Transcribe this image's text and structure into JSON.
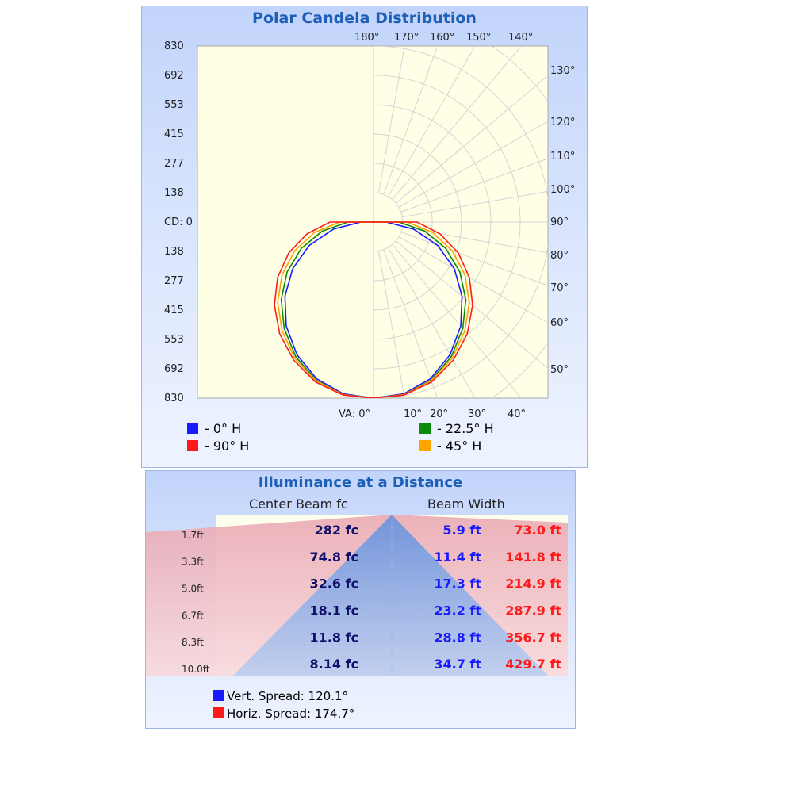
{
  "polar": {
    "title": "Polar Candela Distribution",
    "legend": [
      {
        "label": "- 0° H",
        "color": "#1a1aff"
      },
      {
        "label": "- 22.5° H",
        "color": "#0b8a0b"
      },
      {
        "label": "- 90° H",
        "color": "#ff1a1a"
      },
      {
        "label": "- 45° H",
        "color": "#ffa500"
      }
    ]
  },
  "chart_data": [
    {
      "type": "polar",
      "title": "Polar Candela Distribution",
      "radial_axis_label": "CD: 0",
      "radial_ticks": [
        "830",
        "692",
        "553",
        "415",
        "277",
        "138",
        "CD: 0",
        "138",
        "277",
        "415",
        "553",
        "692",
        "830"
      ],
      "radial_max": 830,
      "bottom_angle_label": "VA: 0°",
      "bottom_angle_ticks": [
        "10°",
        "20°",
        "30°",
        "40°"
      ],
      "right_angle_ticks": [
        "50°",
        "60°",
        "70°",
        "80°",
        "90°",
        "100°",
        "110°",
        "120°",
        "130°"
      ],
      "top_angle_ticks": [
        "140°",
        "150°",
        "160°",
        "170°",
        "180°"
      ],
      "series": [
        {
          "name": "0° H",
          "color": "#1a1aff",
          "angles": [
            0,
            10,
            20,
            30,
            40,
            50,
            60,
            70,
            80,
            90,
            95
          ],
          "candela": [
            830,
            822,
            786,
            722,
            640,
            545,
            440,
            322,
            192,
            60,
            0
          ]
        },
        {
          "name": "22.5° H",
          "color": "#0b8a0b",
          "angles": [
            0,
            10,
            20,
            30,
            40,
            50,
            60,
            70,
            80,
            90,
            95
          ],
          "candela": [
            830,
            826,
            793,
            733,
            655,
            568,
            470,
            362,
            245,
            120,
            0
          ]
        },
        {
          "name": "45° H",
          "color": "#ffa500",
          "angles": [
            0,
            10,
            20,
            30,
            40,
            50,
            60,
            70,
            80,
            90,
            95
          ],
          "candela": [
            830,
            826,
            796,
            742,
            670,
            590,
            498,
            395,
            282,
            160,
            0
          ]
        },
        {
          "name": "90° H",
          "color": "#ff1a1a",
          "angles": [
            0,
            10,
            20,
            30,
            40,
            50,
            60,
            70,
            80,
            90,
            95
          ],
          "candela": [
            830,
            828,
            802,
            752,
            688,
            610,
            522,
            425,
            318,
            205,
            0
          ]
        }
      ]
    },
    {
      "type": "table",
      "title": "Illuminance at a Distance",
      "columns": [
        "Center Beam fc",
        "Beam Width"
      ],
      "distances": [
        "1.7ft",
        "3.3ft",
        "5.0ft",
        "6.7ft",
        "8.3ft",
        "10.0ft"
      ],
      "center_beam_fc": [
        "282 fc",
        "74.8 fc",
        "32.6 fc",
        "18.1 fc",
        "11.8 fc",
        "8.14 fc"
      ],
      "beam_width_vert": [
        "5.9 ft",
        "11.4 ft",
        "17.3 ft",
        "23.2 ft",
        "28.8 ft",
        "34.7 ft"
      ],
      "beam_width_horiz": [
        "73.0 ft",
        "141.8 ft",
        "214.9 ft",
        "287.9 ft",
        "356.7 ft",
        "429.7 ft"
      ],
      "vert_color": "#1a1aff",
      "horiz_color": "#ff1a1a",
      "vert_spread": "Vert. Spread: 120.1°",
      "horiz_spread": "Horiz. Spread: 174.7°"
    }
  ]
}
